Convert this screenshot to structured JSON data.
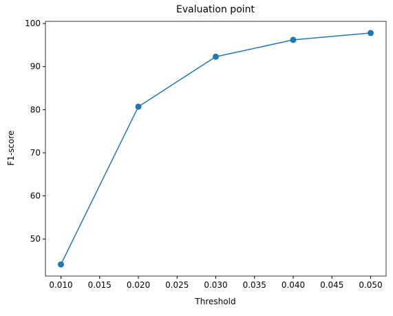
{
  "chart_data": {
    "type": "line",
    "title": "Evaluation point",
    "x_label": "Threshold",
    "y_label": "F1-score",
    "x": [
      0.01,
      0.02,
      0.03,
      0.04,
      0.05
    ],
    "series": [
      {
        "values": [
          44.1,
          80.7,
          92.3,
          96.2,
          97.8
        ],
        "color": "#1f77b4"
      }
    ],
    "xlim": [
      0.008,
      0.052
    ],
    "xticks": [
      {
        "value": 0.01,
        "label": "0.010"
      },
      0.015,
      {
        "value": 0.02,
        "label": "0.020"
      },
      0.025,
      {
        "value": 0.03,
        "label": "0.030"
      },
      0.035,
      {
        "value": 0.04,
        "label": "0.040"
      },
      0.045,
      {
        "value": 0.05,
        "label": "0.050"
      }
    ],
    "ylim": [
      41.4,
      100.5
    ],
    "yticks": [
      50,
      60,
      70,
      80,
      90,
      100
    ]
  }
}
